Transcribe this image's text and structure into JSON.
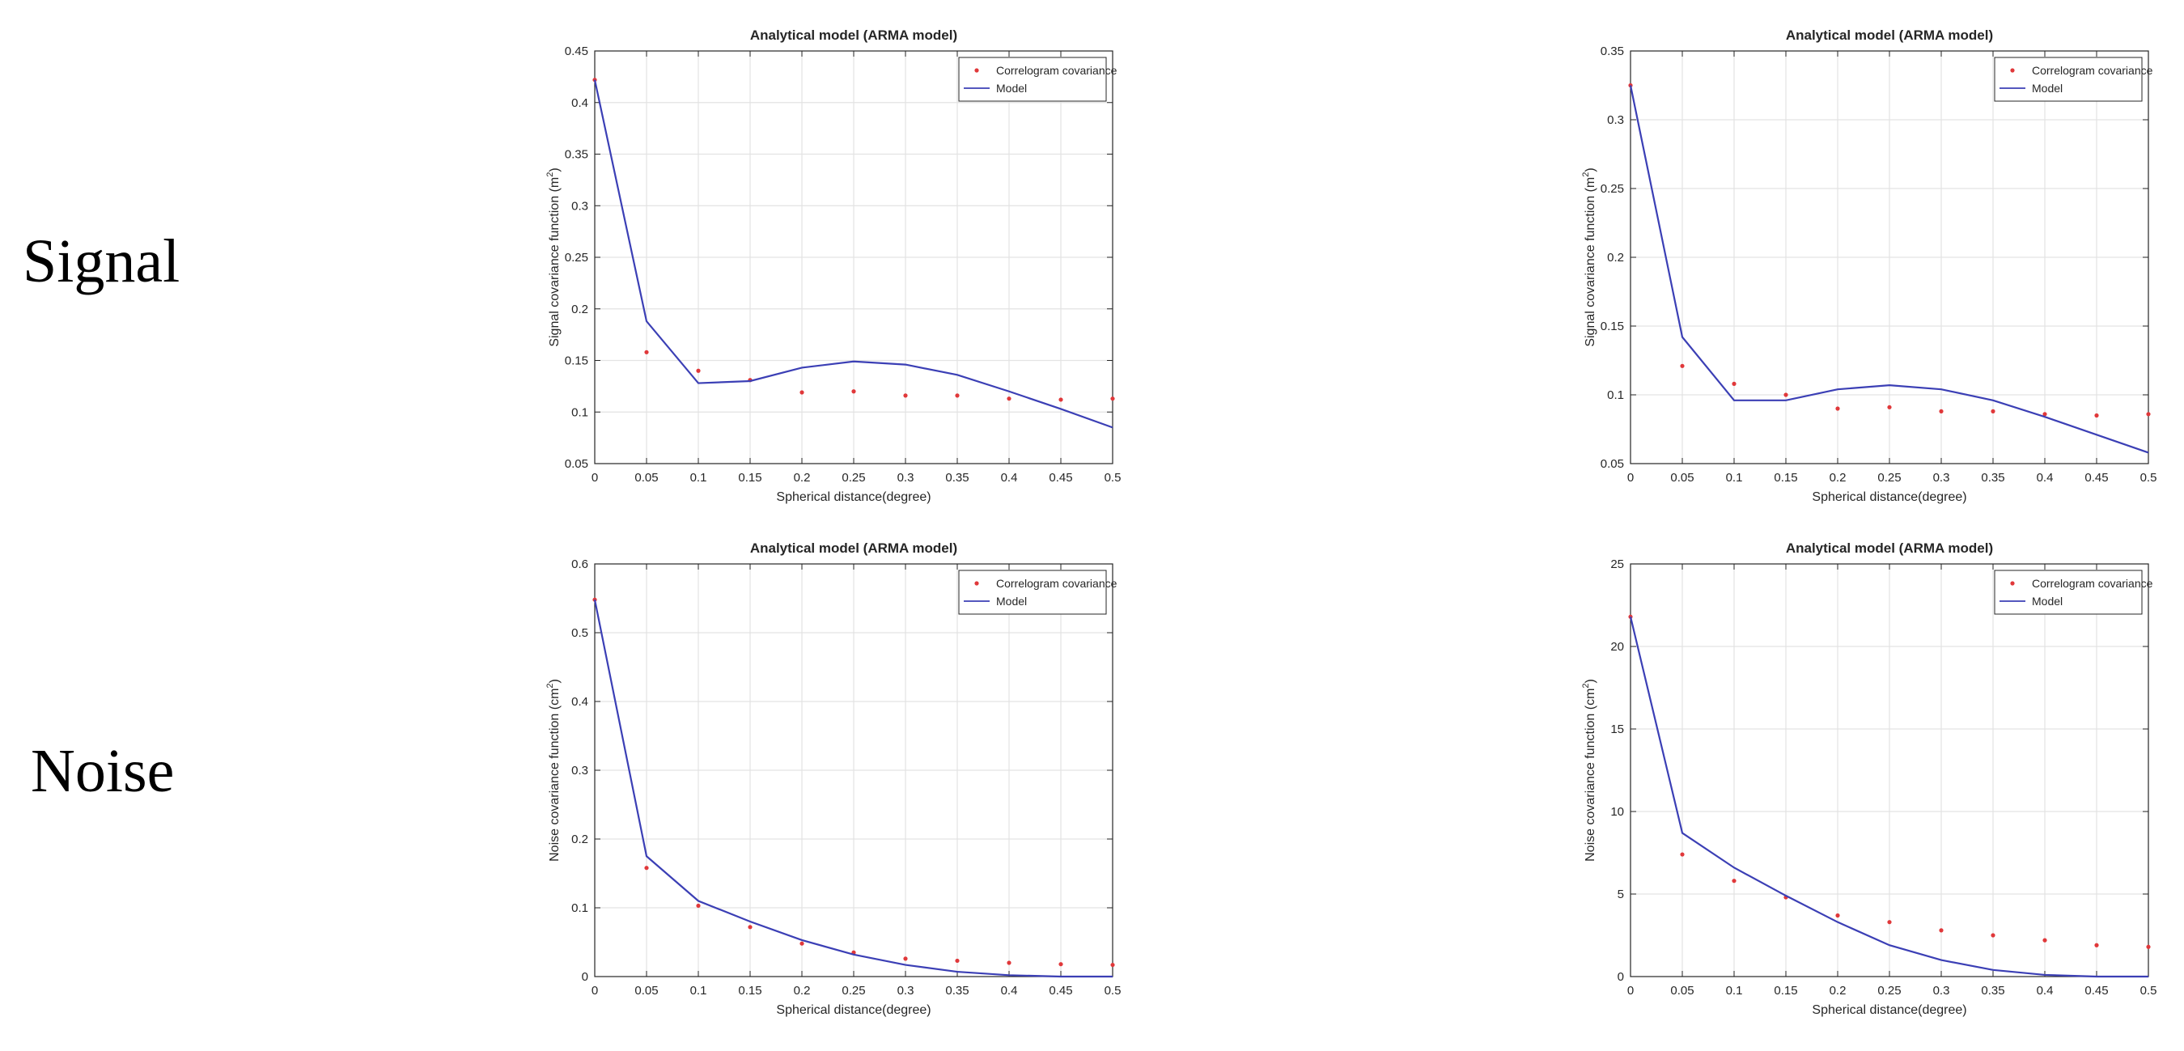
{
  "row_labels": {
    "signal": "Signal",
    "noise": "Noise"
  },
  "colors": {
    "model_line": "#3b3fb5",
    "points": "#e0383a",
    "grid": "#e3e3e3",
    "axis": "#262626"
  },
  "chart_data": [
    {
      "type": "line",
      "title": "Analytical model (ARMA model)",
      "xlabel": "Spherical distance(degree)",
      "ylabel": "Signal covariance function (m",
      "ylabel_sup": "2",
      "ylabel_end": ")",
      "xlim": [
        0,
        0.5
      ],
      "ylim": [
        0.05,
        0.45
      ],
      "xticks": [
        0,
        0.05,
        0.1,
        0.15,
        0.2,
        0.25,
        0.3,
        0.35,
        0.4,
        0.45,
        0.5
      ],
      "xtick_labels": [
        "0",
        "0.05",
        "0.1",
        "0.15",
        "0.2",
        "0.25",
        "0.3",
        "0.35",
        "0.4",
        "0.45",
        "0.5"
      ],
      "yticks": [
        0.05,
        0.1,
        0.15,
        0.2,
        0.25,
        0.3,
        0.35,
        0.4,
        0.45
      ],
      "ytick_labels": [
        "0.05",
        "0.1",
        "0.15",
        "0.2",
        "0.25",
        "0.3",
        "0.35",
        "0.4",
        "0.45"
      ],
      "grid": true,
      "legend": "top-right",
      "series": [
        {
          "name": "Correlogram covariance",
          "kind": "points",
          "x": [
            0,
            0.05,
            0.1,
            0.15,
            0.2,
            0.25,
            0.3,
            0.35,
            0.4,
            0.45,
            0.5
          ],
          "y": [
            0.422,
            0.158,
            0.14,
            0.131,
            0.119,
            0.12,
            0.116,
            0.116,
            0.113,
            0.112,
            0.113
          ]
        },
        {
          "name": "Model",
          "kind": "line",
          "x": [
            0,
            0.05,
            0.1,
            0.15,
            0.2,
            0.25,
            0.3,
            0.35,
            0.4,
            0.45,
            0.5
          ],
          "y": [
            0.422,
            0.188,
            0.128,
            0.13,
            0.143,
            0.149,
            0.146,
            0.136,
            0.12,
            0.103,
            0.085
          ]
        }
      ]
    },
    {
      "type": "line",
      "title": "Analytical model (ARMA model)",
      "xlabel": "Spherical distance(degree)",
      "ylabel": "Signal covariance function (m",
      "ylabel_sup": "2",
      "ylabel_end": ")",
      "xlim": [
        0,
        0.5
      ],
      "ylim": [
        0.05,
        0.35
      ],
      "xticks": [
        0,
        0.05,
        0.1,
        0.15,
        0.2,
        0.25,
        0.3,
        0.35,
        0.4,
        0.45,
        0.5
      ],
      "xtick_labels": [
        "0",
        "0.05",
        "0.1",
        "0.15",
        "0.2",
        "0.25",
        "0.3",
        "0.35",
        "0.4",
        "0.45",
        "0.5"
      ],
      "yticks": [
        0.05,
        0.1,
        0.15,
        0.2,
        0.25,
        0.3,
        0.35
      ],
      "ytick_labels": [
        "0.05",
        "0.1",
        "0.15",
        "0.2",
        "0.25",
        "0.3",
        "0.35"
      ],
      "grid": true,
      "legend": "top-right",
      "series": [
        {
          "name": "Correlogram covariance",
          "kind": "points",
          "x": [
            0,
            0.05,
            0.1,
            0.15,
            0.2,
            0.25,
            0.3,
            0.35,
            0.4,
            0.45,
            0.5
          ],
          "y": [
            0.325,
            0.121,
            0.108,
            0.1,
            0.09,
            0.091,
            0.088,
            0.088,
            0.086,
            0.085,
            0.086
          ]
        },
        {
          "name": "Model",
          "kind": "line",
          "x": [
            0,
            0.05,
            0.1,
            0.15,
            0.2,
            0.25,
            0.3,
            0.35,
            0.4,
            0.45,
            0.5
          ],
          "y": [
            0.325,
            0.142,
            0.096,
            0.096,
            0.104,
            0.107,
            0.104,
            0.096,
            0.084,
            0.071,
            0.058
          ]
        }
      ]
    },
    {
      "type": "line",
      "title": "Analytical model (ARMA model)",
      "xlabel": "Spherical distance(degree)",
      "ylabel": "Noise covariance function (cm",
      "ylabel_sup": "2",
      "ylabel_end": ")",
      "xlim": [
        0,
        0.5
      ],
      "ylim": [
        0,
        0.6
      ],
      "xticks": [
        0,
        0.05,
        0.1,
        0.15,
        0.2,
        0.25,
        0.3,
        0.35,
        0.4,
        0.45,
        0.5
      ],
      "xtick_labels": [
        "0",
        "0.05",
        "0.1",
        "0.15",
        "0.2",
        "0.25",
        "0.3",
        "0.35",
        "0.4",
        "0.45",
        "0.5"
      ],
      "yticks": [
        0,
        0.1,
        0.2,
        0.3,
        0.4,
        0.5,
        0.6
      ],
      "ytick_labels": [
        "0",
        "0.1",
        "0.2",
        "0.3",
        "0.4",
        "0.5",
        "0.6"
      ],
      "grid": true,
      "legend": "top-right",
      "series": [
        {
          "name": "Correlogram covariance",
          "kind": "points",
          "x": [
            0,
            0.05,
            0.1,
            0.15,
            0.2,
            0.25,
            0.3,
            0.35,
            0.4,
            0.45,
            0.5
          ],
          "y": [
            0.548,
            0.158,
            0.103,
            0.072,
            0.048,
            0.035,
            0.026,
            0.023,
            0.02,
            0.018,
            0.017
          ]
        },
        {
          "name": "Model",
          "kind": "line",
          "x": [
            0,
            0.05,
            0.1,
            0.15,
            0.2,
            0.25,
            0.3,
            0.35,
            0.4,
            0.45,
            0.5
          ],
          "y": [
            0.548,
            0.175,
            0.11,
            0.08,
            0.053,
            0.032,
            0.017,
            0.007,
            0.002,
            0.0,
            0.0
          ]
        }
      ]
    },
    {
      "type": "line",
      "title": "Analytical model (ARMA model)",
      "xlabel": "Spherical distance(degree)",
      "ylabel": "Noise covariance function (cm",
      "ylabel_sup": "2",
      "ylabel_end": ")",
      "xlim": [
        0,
        0.5
      ],
      "ylim": [
        0,
        25
      ],
      "xticks": [
        0,
        0.05,
        0.1,
        0.15,
        0.2,
        0.25,
        0.3,
        0.35,
        0.4,
        0.45,
        0.5
      ],
      "xtick_labels": [
        "0",
        "0.05",
        "0.1",
        "0.15",
        "0.2",
        "0.25",
        "0.3",
        "0.35",
        "0.4",
        "0.45",
        "0.5"
      ],
      "yticks": [
        0,
        5,
        10,
        15,
        20,
        25
      ],
      "ytick_labels": [
        "0",
        "5",
        "10",
        "15",
        "20",
        "25"
      ],
      "grid": true,
      "legend": "top-right",
      "series": [
        {
          "name": "Correlogram covariance",
          "kind": "points",
          "x": [
            0,
            0.05,
            0.1,
            0.15,
            0.2,
            0.25,
            0.3,
            0.35,
            0.4,
            0.45,
            0.5
          ],
          "y": [
            21.8,
            7.4,
            5.8,
            4.8,
            3.7,
            3.3,
            2.8,
            2.5,
            2.2,
            1.9,
            1.8
          ]
        },
        {
          "name": "Model",
          "kind": "line",
          "x": [
            0,
            0.05,
            0.1,
            0.15,
            0.2,
            0.25,
            0.3,
            0.35,
            0.4,
            0.45,
            0.5
          ],
          "y": [
            21.8,
            8.7,
            6.6,
            4.9,
            3.3,
            1.9,
            1.0,
            0.4,
            0.1,
            0.0,
            0.0
          ]
        }
      ]
    }
  ]
}
